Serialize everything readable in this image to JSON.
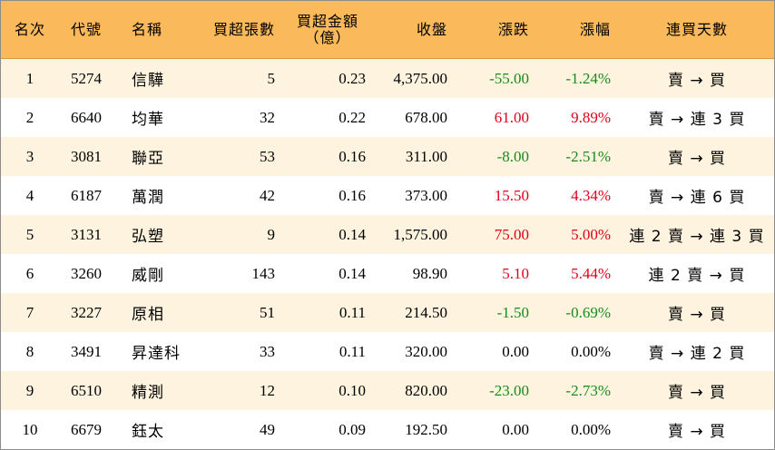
{
  "headers": {
    "rank": "名次",
    "code": "代號",
    "name": "名稱",
    "net_lots": "買超張數",
    "net_amount_line1": "買超金額",
    "net_amount_line2": "（億）",
    "close": "收盤",
    "change": "漲跌",
    "change_pct": "漲幅",
    "buy_days": "連買天數"
  },
  "rows": [
    {
      "rank": "1",
      "code": "5274",
      "name": "信驊",
      "net_lots": "5",
      "net_amount": "0.23",
      "close": "4,375.00",
      "change": "-55.00",
      "change_pct": "-1.24%",
      "trend": "down",
      "buy_days": "賣 → 買"
    },
    {
      "rank": "2",
      "code": "6640",
      "name": "均華",
      "net_lots": "32",
      "net_amount": "0.22",
      "close": "678.00",
      "change": "61.00",
      "change_pct": "9.89%",
      "trend": "up",
      "buy_days": "賣 → 連 3 買"
    },
    {
      "rank": "3",
      "code": "3081",
      "name": "聯亞",
      "net_lots": "53",
      "net_amount": "0.16",
      "close": "311.00",
      "change": "-8.00",
      "change_pct": "-2.51%",
      "trend": "down",
      "buy_days": "賣 → 買"
    },
    {
      "rank": "4",
      "code": "6187",
      "name": "萬潤",
      "net_lots": "42",
      "net_amount": "0.16",
      "close": "373.00",
      "change": "15.50",
      "change_pct": "4.34%",
      "trend": "up",
      "buy_days": "賣 → 連 6 買"
    },
    {
      "rank": "5",
      "code": "3131",
      "name": "弘塑",
      "net_lots": "9",
      "net_amount": "0.14",
      "close": "1,575.00",
      "change": "75.00",
      "change_pct": "5.00%",
      "trend": "up",
      "buy_days": "連 2 賣 → 連 3 買"
    },
    {
      "rank": "6",
      "code": "3260",
      "name": "威剛",
      "net_lots": "143",
      "net_amount": "0.14",
      "close": "98.90",
      "change": "5.10",
      "change_pct": "5.44%",
      "trend": "up",
      "buy_days": "連 2 賣 → 買"
    },
    {
      "rank": "7",
      "code": "3227",
      "name": "原相",
      "net_lots": "51",
      "net_amount": "0.11",
      "close": "214.50",
      "change": "-1.50",
      "change_pct": "-0.69%",
      "trend": "down",
      "buy_days": "賣 → 買"
    },
    {
      "rank": "8",
      "code": "3491",
      "name": "昇達科",
      "net_lots": "33",
      "net_amount": "0.11",
      "close": "320.00",
      "change": "0.00",
      "change_pct": "0.00%",
      "trend": "flat",
      "buy_days": "賣 → 連 2 買"
    },
    {
      "rank": "9",
      "code": "6510",
      "name": "精測",
      "net_lots": "12",
      "net_amount": "0.10",
      "close": "820.00",
      "change": "-23.00",
      "change_pct": "-2.73%",
      "trend": "down",
      "buy_days": "賣 → 買"
    },
    {
      "rank": "10",
      "code": "6679",
      "name": "鈺太",
      "net_lots": "49",
      "net_amount": "0.09",
      "close": "192.50",
      "change": "0.00",
      "change_pct": "0.00%",
      "trend": "flat",
      "buy_days": "賣 → 買"
    }
  ],
  "colors": {
    "header_bg": "#fab95a",
    "odd_row_bg": "#fdf3de",
    "up": "#e0001b",
    "down": "#1a8a1a"
  }
}
